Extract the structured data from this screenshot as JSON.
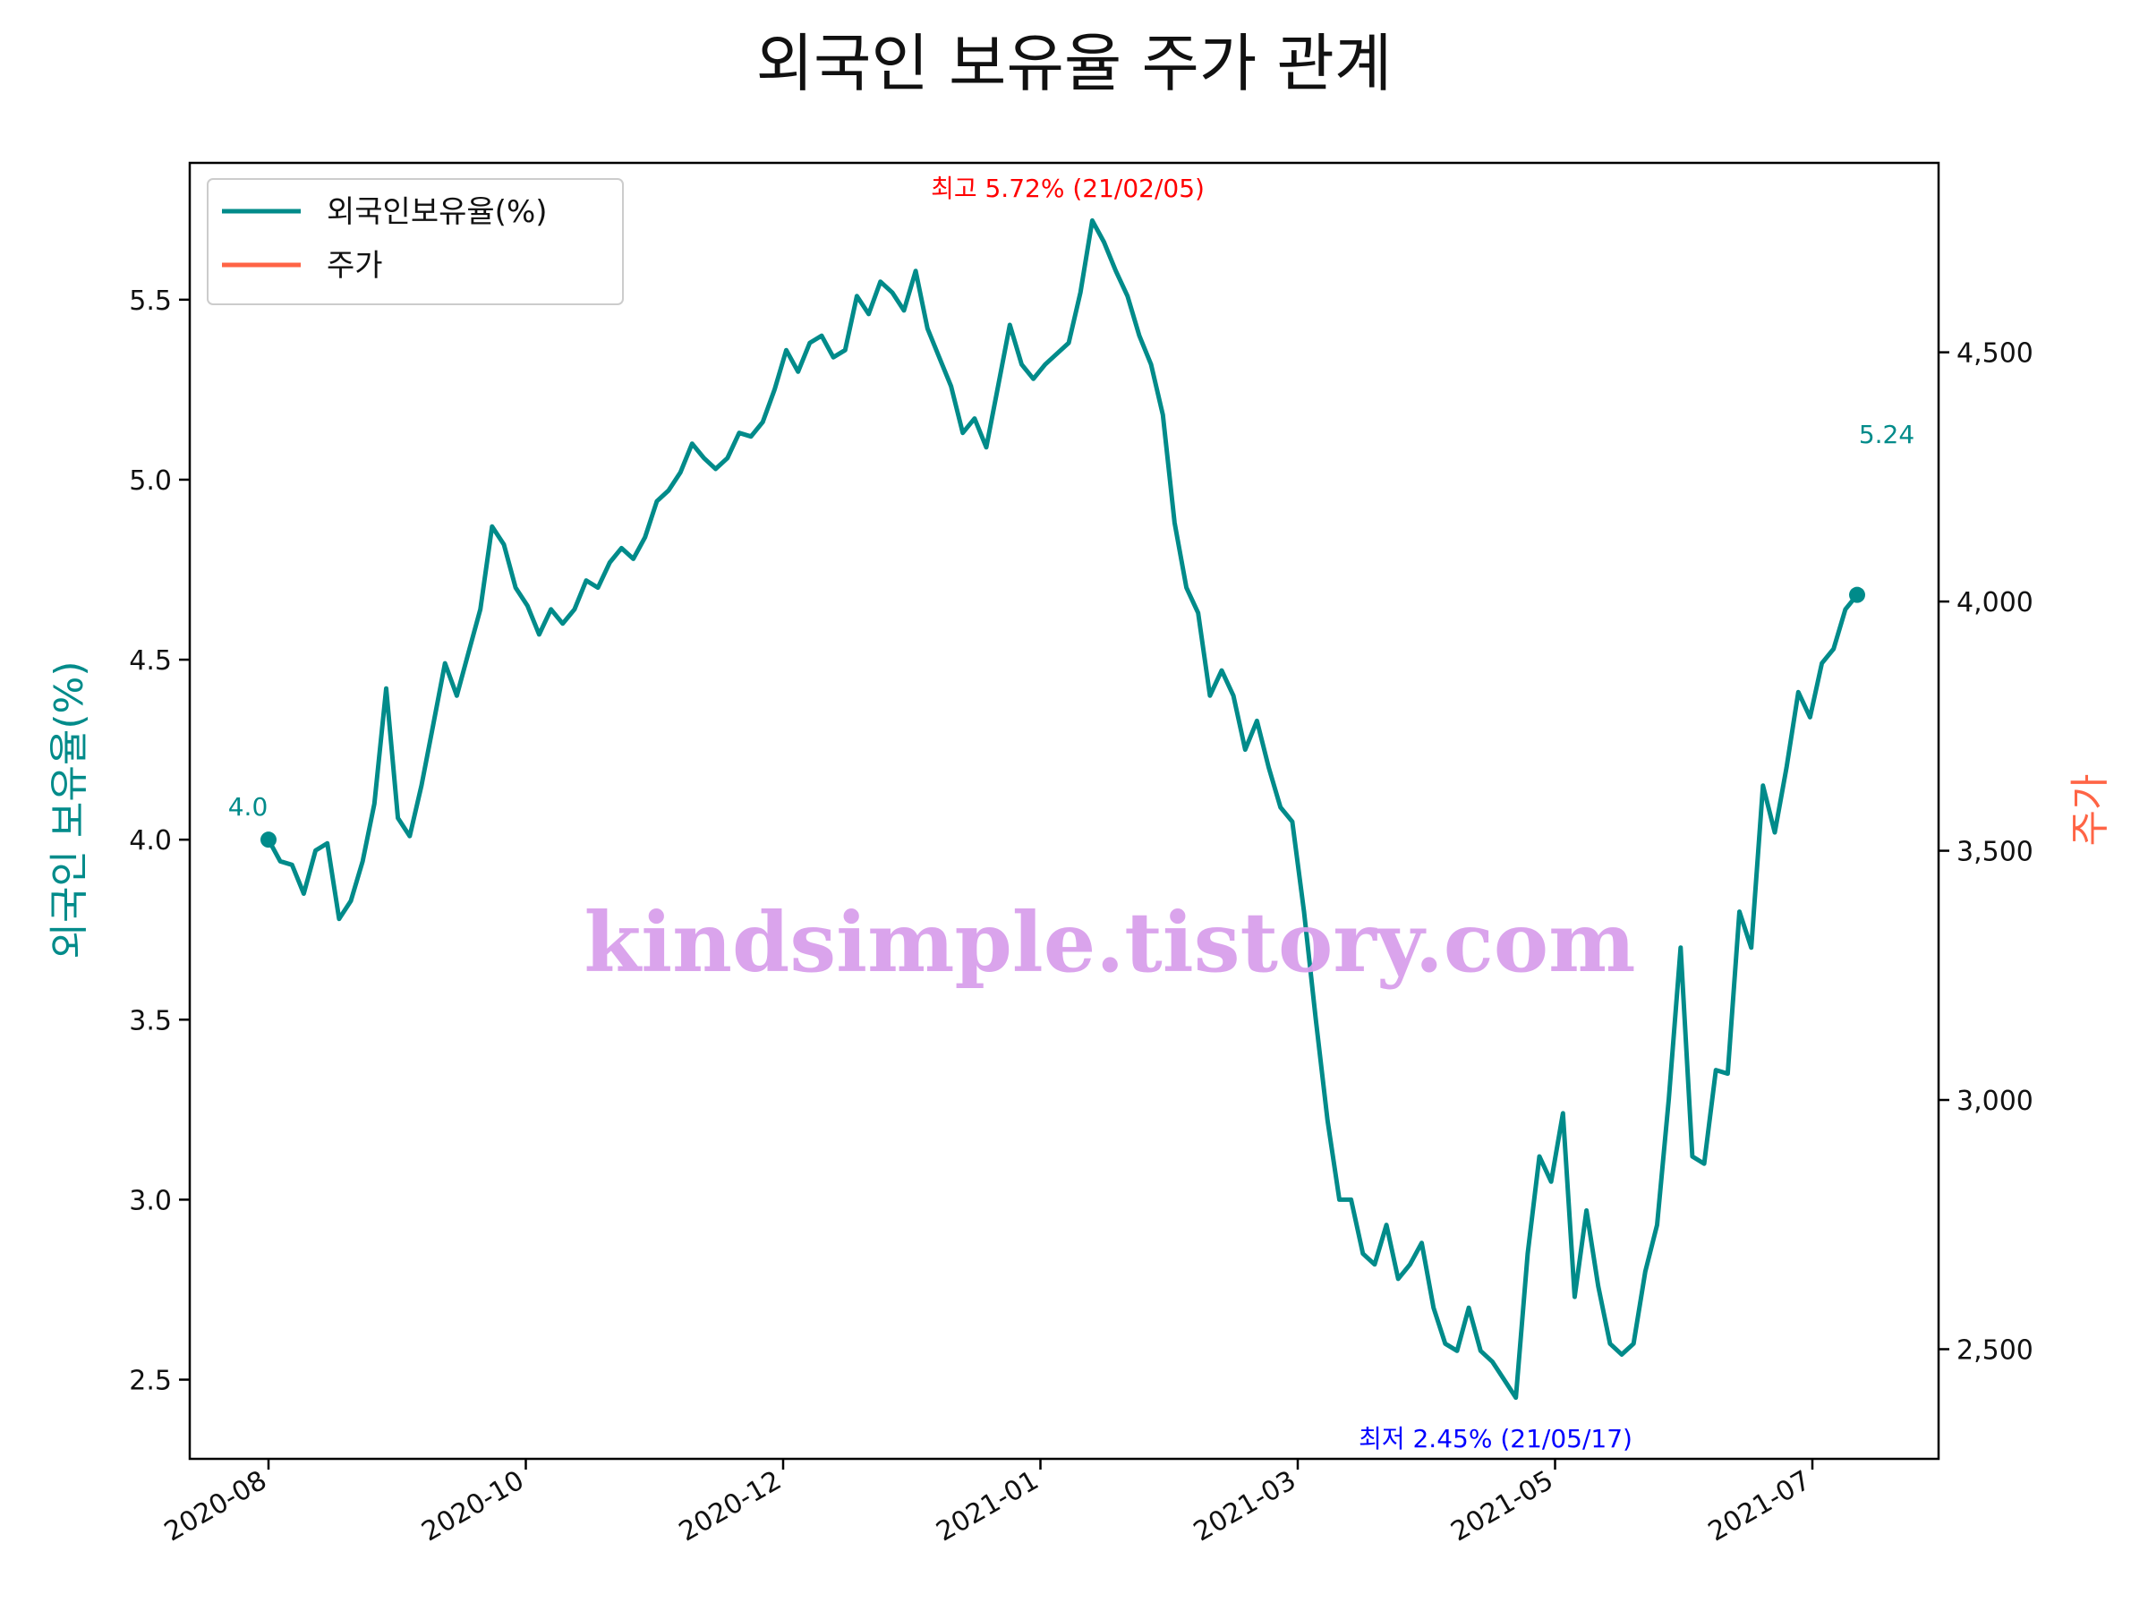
{
  "chart_data": {
    "type": "line",
    "title": "외국인 보유율 주가 관계",
    "ylabel_left": "외국인 보유율(%)",
    "ylabel_right": "주가",
    "y_left_ticks": [
      "2.5",
      "3.0",
      "3.5",
      "4.0",
      "4.5",
      "5.0",
      "5.5"
    ],
    "y_right_ticks": [
      "2,500",
      "3,000",
      "3,500",
      "4,000",
      "4,500"
    ],
    "x_ticks": [
      "2020-08",
      "2020-10",
      "2020-12",
      "2021-01",
      "2021-03",
      "2021-05",
      "2021-07"
    ],
    "y_left_range": [
      2.28,
      5.88
    ],
    "y_right_range": [
      2280,
      4880
    ],
    "x_range": [
      "2020-07-22",
      "2021-07-26"
    ],
    "legend": {
      "position": "top-left",
      "entries": [
        "외국인보유율(%)",
        "주가"
      ]
    },
    "watermark": "kindsimple.tistory.com",
    "series": [
      {
        "name": "외국인보유율(%)",
        "axis": "left",
        "color": "#008b8a",
        "points": [
          [
            "2020-08-01",
            4.0
          ],
          [
            "2020-08-03",
            3.94
          ],
          [
            "2020-08-05",
            3.93
          ],
          [
            "2020-08-08",
            3.85
          ],
          [
            "2020-08-10",
            3.97
          ],
          [
            "2020-08-12",
            3.99
          ],
          [
            "2020-08-14",
            3.78
          ],
          [
            "2020-08-17",
            3.83
          ],
          [
            "2020-08-20",
            3.94
          ],
          [
            "2020-08-22",
            4.1
          ],
          [
            "2020-08-24",
            4.42
          ],
          [
            "2020-08-26",
            4.06
          ],
          [
            "2020-08-28",
            4.01
          ],
          [
            "2020-09-01",
            4.15
          ],
          [
            "2020-09-04",
            4.32
          ],
          [
            "2020-09-06",
            4.49
          ],
          [
            "2020-09-08",
            4.4
          ],
          [
            "2020-09-10",
            4.52
          ],
          [
            "2020-09-13",
            4.64
          ],
          [
            "2020-09-16",
            4.87
          ],
          [
            "2020-09-18",
            4.82
          ],
          [
            "2020-09-20",
            4.7
          ],
          [
            "2020-09-23",
            4.65
          ],
          [
            "2020-09-25",
            4.57
          ],
          [
            "2020-09-27",
            4.64
          ],
          [
            "2020-09-30",
            4.6
          ],
          [
            "2020-10-03",
            4.64
          ],
          [
            "2020-10-06",
            4.72
          ],
          [
            "2020-10-08",
            4.7
          ],
          [
            "2020-10-11",
            4.77
          ],
          [
            "2020-10-14",
            4.81
          ],
          [
            "2020-10-17",
            4.78
          ],
          [
            "2020-10-20",
            4.84
          ],
          [
            "2020-10-23",
            4.94
          ],
          [
            "2020-10-26",
            4.97
          ],
          [
            "2020-10-29",
            5.02
          ],
          [
            "2020-11-01",
            5.1
          ],
          [
            "2020-11-05",
            5.06
          ],
          [
            "2020-11-08",
            5.03
          ],
          [
            "2020-11-12",
            5.06
          ],
          [
            "2020-11-15",
            5.13
          ],
          [
            "2020-11-18",
            5.12
          ],
          [
            "2020-11-21",
            5.16
          ],
          [
            "2020-11-24",
            5.25
          ],
          [
            "2020-11-26",
            5.36
          ],
          [
            "2020-11-28",
            5.3
          ],
          [
            "2020-12-01",
            5.38
          ],
          [
            "2020-12-03",
            5.4
          ],
          [
            "2020-12-06",
            5.34
          ],
          [
            "2020-12-09",
            5.36
          ],
          [
            "2020-12-11",
            5.51
          ],
          [
            "2020-12-13",
            5.46
          ],
          [
            "2020-12-16",
            5.55
          ],
          [
            "2020-12-19",
            5.52
          ],
          [
            "2020-12-21",
            5.47
          ],
          [
            "2020-12-23",
            5.58
          ],
          [
            "2020-12-26",
            5.42
          ],
          [
            "2020-12-28",
            5.34
          ],
          [
            "2021-01-01",
            5.26
          ],
          [
            "2021-01-03",
            5.13
          ],
          [
            "2021-01-06",
            5.17
          ],
          [
            "2021-01-09",
            5.09
          ],
          [
            "2021-01-12",
            5.26
          ],
          [
            "2021-01-15",
            5.43
          ],
          [
            "2021-01-18",
            5.32
          ],
          [
            "2021-01-21",
            5.28
          ],
          [
            "2021-01-24",
            5.32
          ],
          [
            "2021-01-27",
            5.35
          ],
          [
            "2021-01-30",
            5.38
          ],
          [
            "2021-02-02",
            5.52
          ],
          [
            "2021-02-05",
            5.72
          ],
          [
            "2021-02-08",
            5.66
          ],
          [
            "2021-02-11",
            5.58
          ],
          [
            "2021-02-14",
            5.51
          ],
          [
            "2021-02-17",
            5.4
          ],
          [
            "2021-02-20",
            5.32
          ],
          [
            "2021-02-23",
            5.18
          ],
          [
            "2021-02-26",
            4.88
          ],
          [
            "2021-02-28",
            4.7
          ],
          [
            "2021-03-02",
            4.63
          ],
          [
            "2021-03-05",
            4.4
          ],
          [
            "2021-03-08",
            4.47
          ],
          [
            "2021-03-11",
            4.4
          ],
          [
            "2021-03-14",
            4.25
          ],
          [
            "2021-03-17",
            4.33
          ],
          [
            "2021-03-20",
            4.2
          ],
          [
            "2021-03-23",
            4.09
          ],
          [
            "2021-03-25",
            4.05
          ],
          [
            "2021-03-28",
            3.8
          ],
          [
            "2021-03-31",
            3.5
          ],
          [
            "2021-04-03",
            3.22
          ],
          [
            "2021-04-06",
            3.0
          ],
          [
            "2021-04-09",
            3.0
          ],
          [
            "2021-04-12",
            2.85
          ],
          [
            "2021-04-15",
            2.82
          ],
          [
            "2021-04-18",
            2.93
          ],
          [
            "2021-04-21",
            2.78
          ],
          [
            "2021-04-24",
            2.82
          ],
          [
            "2021-04-27",
            2.88
          ],
          [
            "2021-04-30",
            2.7
          ],
          [
            "2021-05-03",
            2.6
          ],
          [
            "2021-05-06",
            2.58
          ],
          [
            "2021-05-08",
            2.7
          ],
          [
            "2021-05-10",
            2.58
          ],
          [
            "2021-05-12",
            2.55
          ],
          [
            "2021-05-14",
            2.5
          ],
          [
            "2021-05-17",
            2.45
          ],
          [
            "2021-05-20",
            2.85
          ],
          [
            "2021-05-23",
            3.12
          ],
          [
            "2021-05-26",
            3.05
          ],
          [
            "2021-05-29",
            3.24
          ],
          [
            "2021-06-01",
            2.73
          ],
          [
            "2021-06-04",
            2.97
          ],
          [
            "2021-06-07",
            2.76
          ],
          [
            "2021-06-09",
            2.6
          ],
          [
            "2021-06-11",
            2.57
          ],
          [
            "2021-06-13",
            2.6
          ],
          [
            "2021-06-16",
            2.8
          ],
          [
            "2021-06-19",
            2.93
          ],
          [
            "2021-06-22",
            3.28
          ],
          [
            "2021-06-25",
            3.7
          ],
          [
            "2021-06-27",
            3.12
          ],
          [
            "2021-06-29",
            3.1
          ],
          [
            "2021-07-01",
            3.36
          ],
          [
            "2021-07-03",
            3.35
          ],
          [
            "2021-07-04",
            3.8
          ],
          [
            "2021-07-06",
            3.7
          ],
          [
            "2021-07-08",
            4.15
          ],
          [
            "2021-07-10",
            4.02
          ],
          [
            "2021-07-12",
            4.2
          ],
          [
            "2021-07-14",
            4.41
          ],
          [
            "2021-07-16",
            4.34
          ],
          [
            "2021-07-18",
            4.49
          ],
          [
            "2021-07-20",
            4.53
          ],
          [
            "2021-07-22",
            4.64
          ],
          [
            "2021-07-24",
            4.68
          ]
        ]
      },
      {
        "name": "주가",
        "axis": "right",
        "color": "#ff6445",
        "points": []
      }
    ],
    "annotations": [
      {
        "text": "최고 5.72% (21/02/05)",
        "color": "#ff0000"
      },
      {
        "text": "최저 2.45% (21/05/17)",
        "color": "#0000ff"
      },
      {
        "text": "4.0",
        "color": "#008b8a"
      },
      {
        "text": "5.24",
        "color": "#008b8a"
      }
    ]
  }
}
